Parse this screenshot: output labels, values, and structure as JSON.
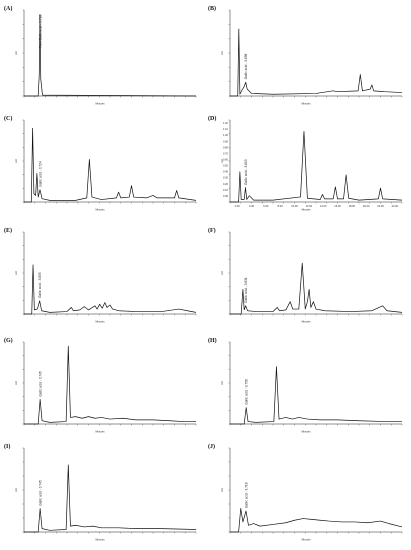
{
  "chart_data": [
    {
      "type": "line",
      "panel_label": "(A)",
      "ylabel": "AU",
      "xlabel": "Minutes",
      "xlim": [
        0,
        40
      ],
      "ylim": [
        0,
        1.0
      ],
      "x_ticks": [],
      "y_ticks": [],
      "annotation": "Pure Gallic acid - 3.718",
      "series": [
        {
          "points": [
            [
              0,
              0.0
            ],
            [
              3.3,
              0.0
            ],
            [
              3.55,
              0.25
            ],
            [
              3.72,
              0.95
            ],
            [
              3.9,
              0.2
            ],
            [
              4.3,
              0.01
            ],
            [
              40,
              0.0
            ]
          ]
        }
      ]
    },
    {
      "type": "line",
      "panel_label": "(B)",
      "ylabel": "AU",
      "xlabel": "Minutes",
      "xlim": [
        0,
        40
      ],
      "ylim": [
        0,
        1.0
      ],
      "x_ticks": [],
      "y_ticks": [],
      "annotation": "Gallic acid - 3.658",
      "series": [
        {
          "points": [
            [
              0,
              0.0
            ],
            [
              1.8,
              0.0
            ],
            [
              2.05,
              0.78
            ],
            [
              2.3,
              0.02
            ],
            [
              2.8,
              0.07
            ],
            [
              3.2,
              0.1
            ],
            [
              3.66,
              0.16
            ],
            [
              4.0,
              0.08
            ],
            [
              5,
              0.03
            ],
            [
              10,
              0.02
            ],
            [
              20,
              0.03
            ],
            [
              24,
              0.06
            ],
            [
              25,
              0.05
            ],
            [
              29.8,
              0.06
            ],
            [
              30.3,
              0.25
            ],
            [
              30.8,
              0.06
            ],
            [
              32.6,
              0.08
            ],
            [
              33,
              0.13
            ],
            [
              33.4,
              0.06
            ],
            [
              36,
              0.05
            ],
            [
              40,
              0.04
            ]
          ]
        }
      ]
    },
    {
      "type": "line",
      "panel_label": "(C)",
      "ylabel": "AU",
      "xlabel": "Minutes",
      "xlim": [
        0,
        40
      ],
      "ylim": [
        0,
        1.0
      ],
      "x_ticks": [],
      "y_ticks": [],
      "annotation": "Gallic acid - 3.724",
      "series": [
        {
          "points": [
            [
              0,
              0.0
            ],
            [
              1.7,
              0.0
            ],
            [
              2.0,
              0.9
            ],
            [
              2.3,
              0.1
            ],
            [
              2.7,
              0.08
            ],
            [
              3.0,
              0.35
            ],
            [
              3.3,
              0.06
            ],
            [
              3.72,
              0.15
            ],
            [
              4.2,
              0.04
            ],
            [
              6,
              0.02
            ],
            [
              12,
              0.02
            ],
            [
              14.6,
              0.05
            ],
            [
              15.2,
              0.52
            ],
            [
              15.8,
              0.06
            ],
            [
              18,
              0.03
            ],
            [
              21.5,
              0.05
            ],
            [
              22,
              0.12
            ],
            [
              22.5,
              0.05
            ],
            [
              24.5,
              0.06
            ],
            [
              25,
              0.2
            ],
            [
              25.5,
              0.06
            ],
            [
              28.5,
              0.05
            ],
            [
              30,
              0.08
            ],
            [
              31,
              0.05
            ],
            [
              35,
              0.05
            ],
            [
              35.5,
              0.14
            ],
            [
              36,
              0.05
            ],
            [
              40,
              0.02
            ]
          ]
        }
      ]
    },
    {
      "type": "line",
      "panel_label": "(D)",
      "ylabel": "AU",
      "xlabel": "Minutes",
      "xlim": [
        0,
        40
      ],
      "ylim": [
        0,
        1.3
      ],
      "x_ticks": [
        "2.00",
        "4.00",
        "6.00",
        "8.00",
        "10.00",
        "12.00",
        "14.00",
        "16.00",
        "18.00",
        "20.00",
        "22.00",
        "24.00"
      ],
      "y_ticks": [
        "0.00",
        "0.10",
        "0.20",
        "0.30",
        "0.40",
        "0.50",
        "0.60",
        "0.70",
        "0.80",
        "0.90",
        "1.00",
        "1.10",
        "1.20"
      ],
      "annotation": "Gallic acid - 3.613",
      "series": [
        {
          "points": [
            [
              0,
              0.0
            ],
            [
              2.0,
              0.0
            ],
            [
              2.3,
              0.48
            ],
            [
              2.6,
              0.04
            ],
            [
              3.3,
              0.04
            ],
            [
              3.6,
              0.23
            ],
            [
              3.9,
              0.04
            ],
            [
              4.5,
              0.1
            ],
            [
              5.5,
              0.03
            ],
            [
              10,
              0.03
            ],
            [
              16.4,
              0.08
            ],
            [
              17.2,
              1.12
            ],
            [
              18,
              0.06
            ],
            [
              21,
              0.04
            ],
            [
              21.5,
              0.12
            ],
            [
              22,
              0.05
            ],
            [
              24,
              0.05
            ],
            [
              24.5,
              0.24
            ],
            [
              25,
              0.05
            ],
            [
              26.4,
              0.05
            ],
            [
              27,
              0.43
            ],
            [
              27.6,
              0.06
            ],
            [
              30,
              0.03
            ],
            [
              34.5,
              0.05
            ],
            [
              35,
              0.22
            ],
            [
              35.5,
              0.05
            ],
            [
              40,
              0.03
            ]
          ]
        }
      ]
    },
    {
      "type": "line",
      "panel_label": "(E)",
      "ylabel": "AU",
      "xlabel": "Minutes",
      "xlim": [
        0,
        40
      ],
      "ylim": [
        0,
        1.0
      ],
      "x_ticks": [],
      "y_ticks": [],
      "annotation": "Gallic acid - 3.653",
      "series": [
        {
          "points": [
            [
              0,
              0.0
            ],
            [
              1.8,
              0.0
            ],
            [
              2.1,
              0.6
            ],
            [
              2.4,
              0.05
            ],
            [
              3.1,
              0.06
            ],
            [
              3.65,
              0.16
            ],
            [
              4.1,
              0.04
            ],
            [
              6,
              0.02
            ],
            [
              10,
              0.03
            ],
            [
              11,
              0.08
            ],
            [
              11.5,
              0.04
            ],
            [
              13,
              0.05
            ],
            [
              14,
              0.09
            ],
            [
              15,
              0.05
            ],
            [
              16.5,
              0.1
            ],
            [
              17,
              0.06
            ],
            [
              17.6,
              0.12
            ],
            [
              18.2,
              0.07
            ],
            [
              18.8,
              0.14
            ],
            [
              19.3,
              0.08
            ],
            [
              20,
              0.11
            ],
            [
              20.6,
              0.06
            ],
            [
              22,
              0.04
            ],
            [
              26,
              0.03
            ],
            [
              32,
              0.03
            ],
            [
              36,
              0.06
            ],
            [
              38,
              0.04
            ],
            [
              40,
              0.02
            ]
          ]
        }
      ]
    },
    {
      "type": "line",
      "panel_label": "(F)",
      "ylabel": "AU",
      "xlabel": "Minutes",
      "xlim": [
        0,
        40
      ],
      "ylim": [
        0,
        1.0
      ],
      "x_ticks": [],
      "y_ticks": [],
      "annotation": "Gallic acid - 3.631",
      "series": [
        {
          "points": [
            [
              0,
              0.0
            ],
            [
              2.6,
              0.0
            ],
            [
              3.0,
              0.3
            ],
            [
              3.3,
              0.05
            ],
            [
              3.63,
              0.1
            ],
            [
              4.1,
              0.04
            ],
            [
              6,
              0.03
            ],
            [
              10,
              0.03
            ],
            [
              11,
              0.08
            ],
            [
              11.5,
              0.04
            ],
            [
              13,
              0.05
            ],
            [
              14,
              0.15
            ],
            [
              14.6,
              0.06
            ],
            [
              16,
              0.06
            ],
            [
              16.8,
              0.62
            ],
            [
              17.5,
              0.06
            ],
            [
              18,
              0.15
            ],
            [
              18.4,
              0.3
            ],
            [
              18.8,
              0.08
            ],
            [
              19.4,
              0.15
            ],
            [
              20,
              0.06
            ],
            [
              22,
              0.04
            ],
            [
              28,
              0.03
            ],
            [
              33,
              0.04
            ],
            [
              35.5,
              0.1
            ],
            [
              36.5,
              0.04
            ],
            [
              40,
              0.02
            ]
          ]
        }
      ]
    },
    {
      "type": "line",
      "panel_label": "(G)",
      "ylabel": "AU",
      "xlabel": "Minutes",
      "xlim": [
        0,
        40
      ],
      "ylim": [
        0,
        1.0
      ],
      "x_ticks": [],
      "y_ticks": [],
      "annotation": "Gallic acid - 3.745",
      "series": [
        {
          "points": [
            [
              0,
              0.0
            ],
            [
              3.3,
              0.0
            ],
            [
              3.75,
              0.3
            ],
            [
              4.2,
              0.04
            ],
            [
              6,
              0.02
            ],
            [
              9.8,
              0.03
            ],
            [
              10.3,
              0.95
            ],
            [
              10.8,
              0.08
            ],
            [
              12,
              0.09
            ],
            [
              13.5,
              0.07
            ],
            [
              15,
              0.09
            ],
            [
              16.5,
              0.07
            ],
            [
              18,
              0.08
            ],
            [
              20,
              0.06
            ],
            [
              23,
              0.07
            ],
            [
              26,
              0.05
            ],
            [
              30,
              0.05
            ],
            [
              34,
              0.04
            ],
            [
              37,
              0.03
            ],
            [
              40,
              0.03
            ]
          ]
        }
      ]
    },
    {
      "type": "line",
      "panel_label": "(H)",
      "ylabel": "AU",
      "xlabel": "Minutes",
      "xlim": [
        0,
        40
      ],
      "ylim": [
        0,
        1.0
      ],
      "x_ticks": [],
      "y_ticks": [],
      "annotation": "Gallic acid - 3.756",
      "series": [
        {
          "points": [
            [
              0,
              0.0
            ],
            [
              3.3,
              0.0
            ],
            [
              3.76,
              0.2
            ],
            [
              4.2,
              0.03
            ],
            [
              6,
              0.02
            ],
            [
              10.2,
              0.03
            ],
            [
              10.8,
              0.7
            ],
            [
              11.4,
              0.06
            ],
            [
              13,
              0.08
            ],
            [
              14.5,
              0.06
            ],
            [
              16,
              0.08
            ],
            [
              18,
              0.06
            ],
            [
              21,
              0.05
            ],
            [
              25,
              0.05
            ],
            [
              30,
              0.04
            ],
            [
              36,
              0.03
            ],
            [
              40,
              0.03
            ]
          ]
        }
      ]
    },
    {
      "type": "line",
      "panel_label": "(I)",
      "ylabel": "AU",
      "xlabel": "Minutes",
      "xlim": [
        0,
        40
      ],
      "ylim": [
        0,
        1.0
      ],
      "x_ticks": [],
      "y_ticks": [],
      "annotation": "Gallic acid - 3.745",
      "series": [
        {
          "points": [
            [
              0,
              0.0
            ],
            [
              3.3,
              0.0
            ],
            [
              3.75,
              0.28
            ],
            [
              4.2,
              0.04
            ],
            [
              6,
              0.02
            ],
            [
              9.8,
              0.03
            ],
            [
              10.3,
              0.8
            ],
            [
              10.8,
              0.07
            ],
            [
              12,
              0.08
            ],
            [
              14,
              0.06
            ],
            [
              16,
              0.07
            ],
            [
              18,
              0.05
            ],
            [
              22,
              0.05
            ],
            [
              26,
              0.04
            ],
            [
              32,
              0.04
            ],
            [
              40,
              0.03
            ]
          ]
        }
      ]
    },
    {
      "type": "line",
      "panel_label": "(J)",
      "ylabel": "AU",
      "xlabel": "Minutes",
      "xlim": [
        0,
        40
      ],
      "ylim": [
        0,
        1.0
      ],
      "x_ticks": [],
      "y_ticks": [],
      "annotation": "Gallic acid - 3.718",
      "series": [
        {
          "points": [
            [
              0,
              0.0
            ],
            [
              2.0,
              0.0
            ],
            [
              2.5,
              0.28
            ],
            [
              3.0,
              0.12
            ],
            [
              3.72,
              0.25
            ],
            [
              4.3,
              0.08
            ],
            [
              5.5,
              0.1
            ],
            [
              7,
              0.07
            ],
            [
              10,
              0.09
            ],
            [
              13,
              0.11
            ],
            [
              15,
              0.14
            ],
            [
              17,
              0.16
            ],
            [
              19,
              0.15
            ],
            [
              21,
              0.14
            ],
            [
              23,
              0.13
            ],
            [
              26,
              0.12
            ],
            [
              29,
              0.12
            ],
            [
              32,
              0.11
            ],
            [
              35,
              0.13
            ],
            [
              37,
              0.1
            ],
            [
              40,
              0.06
            ]
          ]
        }
      ]
    }
  ]
}
